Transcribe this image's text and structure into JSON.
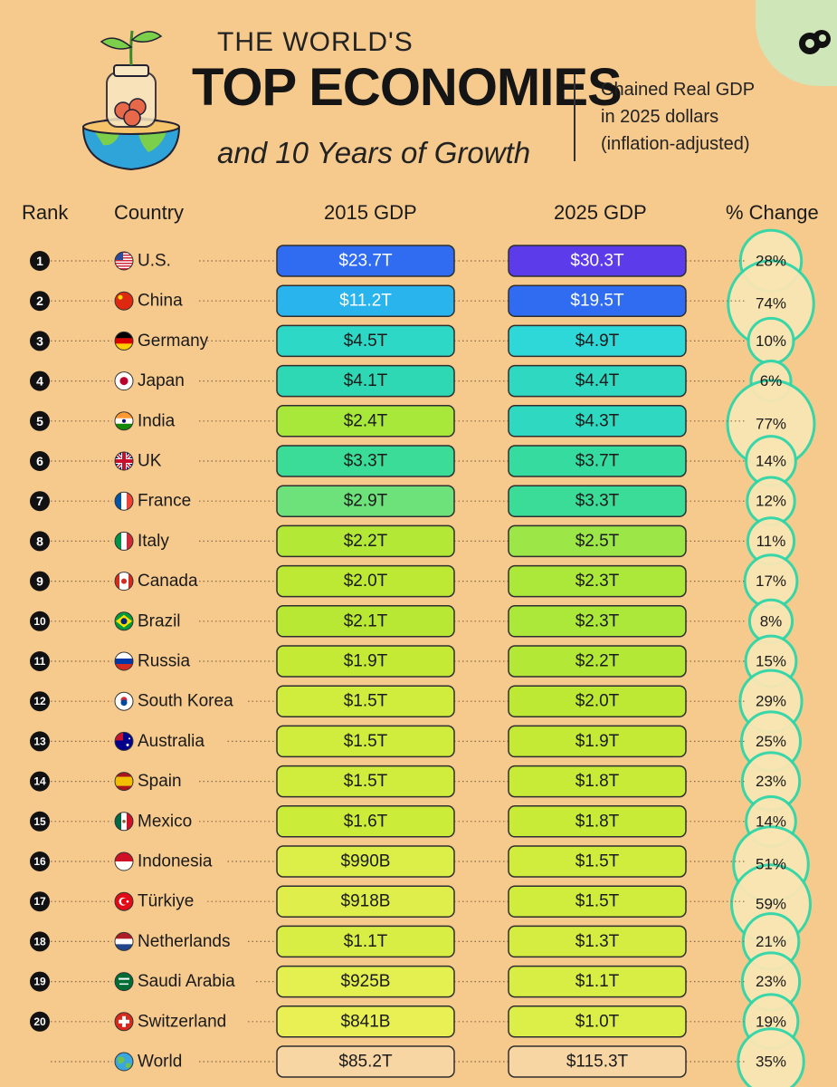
{
  "header": {
    "title_line1": "THE WORLD'S",
    "title_line2": "TOP ECONOMIES",
    "title_line3": "and 10 Years of Growth",
    "subtitle_lines": [
      "Chained Real GDP",
      "in 2025 dollars",
      "(inflation-adjusted)"
    ]
  },
  "columns": {
    "rank": "Rank",
    "country": "Country",
    "gdp2015": "2015 GDP",
    "gdp2025": "2025 GDP",
    "change": "% Change"
  },
  "colors": {
    "background": "#f6c98c",
    "circle_fill": "#f9e6b3",
    "circle_stroke": "#2ed6a8",
    "bar_border": "#2e2e2e"
  },
  "chart_data": {
    "type": "table",
    "rows": [
      {
        "rank": "1",
        "country": "U.S.",
        "gdp2015": "$23.7T",
        "gdp2025": "$30.3T",
        "change": "28%",
        "change_value": 28,
        "flag": "us-flag-icon",
        "color2015": "#2f6cf2",
        "color2025": "#5b3bea"
      },
      {
        "rank": "2",
        "country": "China",
        "gdp2015": "$11.2T",
        "gdp2025": "$19.5T",
        "change": "74%",
        "change_value": 74,
        "flag": "china-flag-icon",
        "color2015": "#2ab4ee",
        "color2025": "#2f6cf2"
      },
      {
        "rank": "3",
        "country": "Germany",
        "gdp2015": "$4.5T",
        "gdp2025": "$4.9T",
        "change": "10%",
        "change_value": 10,
        "flag": "germany-flag-icon",
        "color2015": "#2ed8c6",
        "color2025": "#2ed8d8"
      },
      {
        "rank": "4",
        "country": "Japan",
        "gdp2015": "$4.1T",
        "gdp2025": "$4.4T",
        "change": "6%",
        "change_value": 6,
        "flag": "japan-flag-icon",
        "color2015": "#2fd8b4",
        "color2025": "#2fd8c0"
      },
      {
        "rank": "5",
        "country": "India",
        "gdp2015": "$2.4T",
        "gdp2025": "$4.3T",
        "change": "77%",
        "change_value": 77,
        "flag": "india-flag-icon",
        "color2015": "#a8e83a",
        "color2025": "#2fd8c0"
      },
      {
        "rank": "6",
        "country": "UK",
        "gdp2015": "$3.3T",
        "gdp2025": "$3.7T",
        "change": "14%",
        "change_value": 14,
        "flag": "uk-flag-icon",
        "color2015": "#3adc98",
        "color2025": "#36dba0"
      },
      {
        "rank": "7",
        "country": "France",
        "gdp2015": "$2.9T",
        "gdp2025": "$3.3T",
        "change": "12%",
        "change_value": 12,
        "flag": "france-flag-icon",
        "color2015": "#6ee27a",
        "color2025": "#3adc98"
      },
      {
        "rank": "8",
        "country": "Italy",
        "gdp2015": "$2.2T",
        "gdp2025": "$2.5T",
        "change": "11%",
        "change_value": 11,
        "flag": "italy-flag-icon",
        "color2015": "#b4e836",
        "color2025": "#9ce648"
      },
      {
        "rank": "9",
        "country": "Canada",
        "gdp2015": "$2.0T",
        "gdp2025": "$2.3T",
        "change": "17%",
        "change_value": 17,
        "flag": "canada-flag-icon",
        "color2015": "#bde934",
        "color2025": "#ace83a"
      },
      {
        "rank": "10",
        "country": "Brazil",
        "gdp2015": "$2.1T",
        "gdp2025": "$2.3T",
        "change": "8%",
        "change_value": 8,
        "flag": "brazil-flag-icon",
        "color2015": "#b8e834",
        "color2025": "#ace83a"
      },
      {
        "rank": "11",
        "country": "Russia",
        "gdp2015": "$1.9T",
        "gdp2025": "$2.2T",
        "change": "15%",
        "change_value": 15,
        "flag": "russia-flag-icon",
        "color2015": "#c4ea36",
        "color2025": "#b4e836"
      },
      {
        "rank": "12",
        "country": "South Korea",
        "gdp2015": "$1.5T",
        "gdp2025": "$2.0T",
        "change": "29%",
        "change_value": 29,
        "flag": "south-korea-flag-icon",
        "color2015": "#d0ec3c",
        "color2025": "#bde934"
      },
      {
        "rank": "13",
        "country": "Australia",
        "gdp2015": "$1.5T",
        "gdp2025": "$1.9T",
        "change": "25%",
        "change_value": 25,
        "flag": "australia-flag-icon",
        "color2015": "#d0ec3c",
        "color2025": "#c4ea36"
      },
      {
        "rank": "14",
        "country": "Spain",
        "gdp2015": "$1.5T",
        "gdp2025": "$1.8T",
        "change": "23%",
        "change_value": 23,
        "flag": "spain-flag-icon",
        "color2015": "#d0ec3c",
        "color2025": "#c8eb38"
      },
      {
        "rank": "15",
        "country": "Mexico",
        "gdp2015": "$1.6T",
        "gdp2025": "$1.8T",
        "change": "14%",
        "change_value": 14,
        "flag": "mexico-flag-icon",
        "color2015": "#ccec3a",
        "color2025": "#c8eb38"
      },
      {
        "rank": "16",
        "country": "Indonesia",
        "gdp2015": "$990B",
        "gdp2025": "$1.5T",
        "change": "51%",
        "change_value": 51,
        "flag": "indonesia-flag-icon",
        "color2015": "#dcee48",
        "color2025": "#d0ec3c"
      },
      {
        "rank": "17",
        "country": "Türkiye",
        "gdp2015": "$918B",
        "gdp2025": "$1.5T",
        "change": "59%",
        "change_value": 59,
        "flag": "turkiye-flag-icon",
        "color2015": "#e0ee4c",
        "color2025": "#d0ec3c"
      },
      {
        "rank": "18",
        "country": "Netherlands",
        "gdp2015": "$1.1T",
        "gdp2025": "$1.3T",
        "change": "21%",
        "change_value": 21,
        "flag": "netherlands-flag-icon",
        "color2015": "#d8ee44",
        "color2025": "#d4ed40"
      },
      {
        "rank": "19",
        "country": "Saudi Arabia",
        "gdp2015": "$925B",
        "gdp2025": "$1.1T",
        "change": "23%",
        "change_value": 23,
        "flag": "saudi-arabia-flag-icon",
        "color2015": "#e4ef50",
        "color2025": "#d8ee44"
      },
      {
        "rank": "20",
        "country": "Switzerland",
        "gdp2015": "$841B",
        "gdp2025": "$1.0T",
        "change": "19%",
        "change_value": 19,
        "flag": "switzerland-flag-icon",
        "color2015": "#e8f054",
        "color2025": "#dcee48"
      },
      {
        "rank": "",
        "country": "World",
        "gdp2015": "$85.2T",
        "gdp2025": "$115.3T",
        "change": "35%",
        "change_value": 35,
        "flag": "globe-icon",
        "color2015": "#f7d6a4",
        "color2025": "#f7d6a4"
      }
    ]
  }
}
